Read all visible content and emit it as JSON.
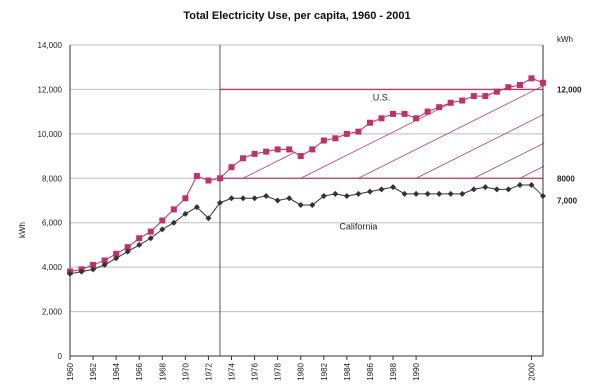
{
  "chart_data": {
    "type": "line",
    "title": "Total Electricity Use, per capita, 1960 - 2001",
    "ylabel": "kWh",
    "y2label": "kWh",
    "ylim": [
      0,
      14000
    ],
    "xlim": [
      1960,
      2001
    ],
    "yticks": [
      0,
      2000,
      4000,
      6000,
      8000,
      10000,
      12000,
      14000
    ],
    "ytick_labels": [
      "0",
      "2,000",
      "4,000",
      "6,000",
      "8,000",
      "10,000",
      "12,000",
      "14,000"
    ],
    "xticks": [
      1960,
      1962,
      1964,
      1966,
      1968,
      1970,
      1972,
      1974,
      1976,
      1978,
      1980,
      1982,
      1984,
      1986,
      1988,
      1990,
      2000
    ],
    "xtick_labels": [
      "1960",
      "1962",
      "1964",
      "1966",
      "1968",
      "1970",
      "1972",
      "1974",
      "1976",
      "1978",
      "1980",
      "1982",
      "1984",
      "1986",
      "1988",
      "1990",
      "2000"
    ],
    "grid": true,
    "vertical_marker_year": 1973,
    "reference_lines": [
      {
        "label": "12,000",
        "value": 12000,
        "color": "#b0406a"
      },
      {
        "label": "8000",
        "value": 8000,
        "color": "#b0406a"
      },
      {
        "label": "7,000",
        "value": 7000,
        "color": "#444444"
      }
    ],
    "series": [
      {
        "name": "U.S.",
        "color": "#c0306a",
        "marker": "square",
        "x": [
          1960,
          1961,
          1962,
          1963,
          1964,
          1965,
          1966,
          1967,
          1968,
          1969,
          1970,
          1971,
          1972,
          1973,
          1974,
          1975,
          1976,
          1977,
          1978,
          1979,
          1980,
          1981,
          1982,
          1983,
          1984,
          1985,
          1986,
          1987,
          1988,
          1989,
          1990,
          1991,
          1992,
          1993,
          1994,
          1995,
          1996,
          1997,
          1998,
          1999,
          2000,
          2001
        ],
        "values": [
          3800,
          3900,
          4100,
          4300,
          4600,
          4900,
          5300,
          5600,
          6100,
          6600,
          7100,
          8100,
          7900,
          8000,
          8500,
          8900,
          9100,
          9200,
          9300,
          9300,
          9000,
          9300,
          9700,
          9800,
          10000,
          10100,
          10500,
          10700,
          10900,
          10900,
          10700,
          11000,
          11200,
          11400,
          11500,
          11700,
          11700,
          11900,
          12100,
          12200,
          12500,
          12300
        ]
      },
      {
        "name": "California",
        "color": "#333333",
        "marker": "diamond",
        "x": [
          1960,
          1961,
          1962,
          1963,
          1964,
          1965,
          1966,
          1967,
          1968,
          1969,
          1970,
          1971,
          1972,
          1973,
          1974,
          1975,
          1976,
          1977,
          1978,
          1979,
          1980,
          1981,
          1982,
          1983,
          1984,
          1985,
          1986,
          1987,
          1988,
          1989,
          1990,
          1991,
          1992,
          1993,
          1994,
          1995,
          1996,
          1997,
          1998,
          1999,
          2000,
          2001
        ],
        "values": [
          3700,
          3800,
          3900,
          4100,
          4400,
          4700,
          5000,
          5300,
          5700,
          6000,
          6400,
          6700,
          6200,
          6900,
          7100,
          7100,
          7100,
          7200,
          7000,
          7100,
          6800,
          6800,
          7200,
          7300,
          7200,
          7300,
          7400,
          7500,
          7600,
          7300,
          7300,
          7300,
          7300,
          7300,
          7300,
          7500,
          7600,
          7500,
          7500,
          7700,
          7700,
          7200
        ]
      }
    ]
  }
}
